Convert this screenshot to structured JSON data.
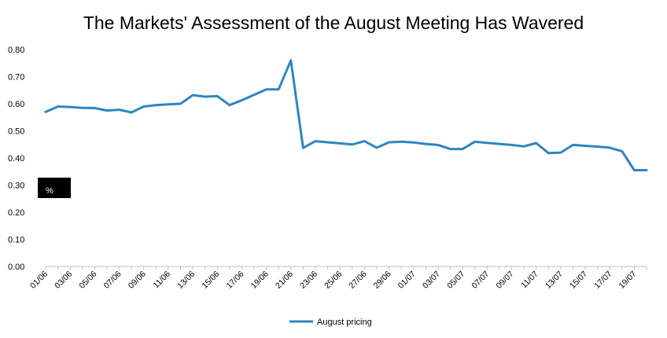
{
  "chart_data": {
    "type": "line",
    "title": "The Markets' Assessment of the August Meeting Has Wavered",
    "unit_label": "%",
    "x_tick_labels": [
      "01/06",
      "03/06",
      "05/06",
      "07/06",
      "09/06",
      "11/06",
      "13/06",
      "15/06",
      "17/06",
      "19/06",
      "21/06",
      "23/06",
      "25/06",
      "27/06",
      "29/06",
      "01/07",
      "03/07",
      "05/07",
      "07/07",
      "09/07",
      "11/07",
      "13/07",
      "15/07",
      "17/07",
      "19/07"
    ],
    "y_tick_labels": [
      "0.00",
      "0.10",
      "0.20",
      "0.30",
      "0.40",
      "0.50",
      "0.60",
      "0.70",
      "0.80"
    ],
    "ylim": [
      0,
      0.8
    ],
    "grid": false,
    "legend_position": "bottom",
    "series": [
      {
        "name": "August pricing",
        "color": "#2E86C1",
        "x": [
          "01/06",
          "02/06",
          "03/06",
          "04/06",
          "05/06",
          "06/06",
          "07/06",
          "08/06",
          "09/06",
          "10/06",
          "11/06",
          "12/06",
          "13/06",
          "14/06",
          "15/06",
          "16/06",
          "17/06",
          "18/06",
          "19/06",
          "20/06",
          "21/06",
          "22/06",
          "23/06",
          "24/06",
          "25/06",
          "26/06",
          "27/06",
          "28/06",
          "29/06",
          "30/06",
          "01/07",
          "02/07",
          "03/07",
          "04/07",
          "05/07",
          "06/07",
          "07/07",
          "08/07",
          "09/07",
          "10/07",
          "11/07",
          "12/07",
          "13/07",
          "14/07",
          "15/07",
          "16/07",
          "17/07",
          "18/07",
          "19/07",
          "20/07"
        ],
        "values": [
          0.57,
          0.59,
          0.588,
          0.585,
          0.584,
          0.575,
          0.578,
          0.568,
          0.59,
          0.595,
          0.598,
          0.6,
          0.632,
          0.626,
          0.628,
          0.595,
          0.613,
          0.633,
          0.653,
          0.653,
          0.76,
          0.437,
          0.462,
          0.458,
          0.454,
          0.45,
          0.462,
          0.438,
          0.458,
          0.46,
          0.457,
          0.452,
          0.448,
          0.433,
          0.433,
          0.46,
          0.456,
          0.452,
          0.448,
          0.443,
          0.455,
          0.418,
          0.42,
          0.448,
          0.445,
          0.442,
          0.438,
          0.425,
          0.355,
          0.355
        ]
      }
    ]
  }
}
